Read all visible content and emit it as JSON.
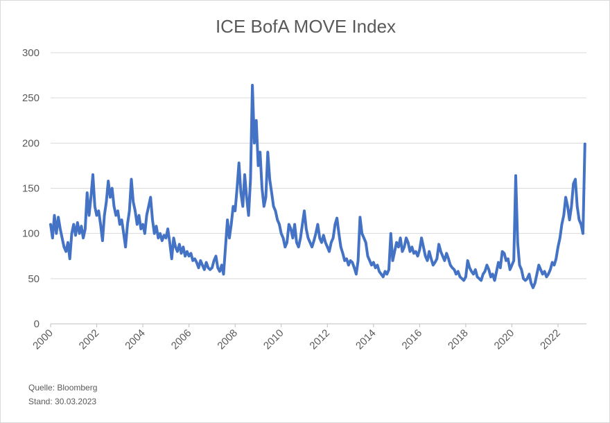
{
  "chart_data": {
    "type": "line",
    "title": "ICE BofA MOVE Index",
    "xlabel": "",
    "ylabel": "",
    "ylim": [
      0,
      300
    ],
    "yticks": [
      "0",
      "50",
      "100",
      "150",
      "200",
      "250",
      "300"
    ],
    "xlim": [
      "2000-01",
      "2023-03"
    ],
    "xticks": [
      "2000",
      "2002",
      "2004",
      "2006",
      "2008",
      "2010",
      "2012",
      "2014",
      "2016",
      "2018",
      "2020",
      "2022"
    ],
    "grid": "horizontal",
    "line_color": "#4472C4",
    "series": [
      {
        "points": [
          [
            "2000-01",
            110
          ],
          [
            "2000-02",
            95
          ],
          [
            "2000-03",
            120
          ],
          [
            "2000-04",
            100
          ],
          [
            "2000-05",
            118
          ],
          [
            "2000-06",
            105
          ],
          [
            "2000-07",
            95
          ],
          [
            "2000-08",
            85
          ],
          [
            "2000-09",
            80
          ],
          [
            "2000-10",
            90
          ],
          [
            "2000-11",
            72
          ],
          [
            "2000-12",
            100
          ],
          [
            "2001-01",
            110
          ],
          [
            "2001-02",
            98
          ],
          [
            "2001-03",
            112
          ],
          [
            "2001-04",
            100
          ],
          [
            "2001-05",
            108
          ],
          [
            "2001-06",
            95
          ],
          [
            "2001-07",
            105
          ],
          [
            "2001-08",
            145
          ],
          [
            "2001-09",
            120
          ],
          [
            "2001-10",
            140
          ],
          [
            "2001-11",
            165
          ],
          [
            "2001-12",
            130
          ],
          [
            "2002-01",
            120
          ],
          [
            "2002-02",
            125
          ],
          [
            "2002-03",
            110
          ],
          [
            "2002-04",
            92
          ],
          [
            "2002-05",
            120
          ],
          [
            "2002-06",
            135
          ],
          [
            "2002-07",
            158
          ],
          [
            "2002-08",
            140
          ],
          [
            "2002-09",
            150
          ],
          [
            "2002-10",
            130
          ],
          [
            "2002-11",
            120
          ],
          [
            "2002-12",
            125
          ],
          [
            "2003-01",
            110
          ],
          [
            "2003-02",
            115
          ],
          [
            "2003-03",
            100
          ],
          [
            "2003-04",
            85
          ],
          [
            "2003-05",
            110
          ],
          [
            "2003-06",
            125
          ],
          [
            "2003-07",
            160
          ],
          [
            "2003-08",
            135
          ],
          [
            "2003-09",
            125
          ],
          [
            "2003-10",
            110
          ],
          [
            "2003-11",
            120
          ],
          [
            "2003-12",
            105
          ],
          [
            "2004-01",
            110
          ],
          [
            "2004-02",
            100
          ],
          [
            "2004-03",
            120
          ],
          [
            "2004-04",
            130
          ],
          [
            "2004-05",
            140
          ],
          [
            "2004-06",
            115
          ],
          [
            "2004-07",
            100
          ],
          [
            "2004-08",
            108
          ],
          [
            "2004-09",
            95
          ],
          [
            "2004-10",
            100
          ],
          [
            "2004-11",
            92
          ],
          [
            "2004-12",
            98
          ],
          [
            "2005-01",
            95
          ],
          [
            "2005-02",
            105
          ],
          [
            "2005-03",
            90
          ],
          [
            "2005-04",
            72
          ],
          [
            "2005-05",
            95
          ],
          [
            "2005-06",
            85
          ],
          [
            "2005-07",
            80
          ],
          [
            "2005-08",
            88
          ],
          [
            "2005-09",
            78
          ],
          [
            "2005-10",
            85
          ],
          [
            "2005-11",
            75
          ],
          [
            "2005-12",
            80
          ],
          [
            "2006-01",
            75
          ],
          [
            "2006-02",
            78
          ],
          [
            "2006-03",
            70
          ],
          [
            "2006-04",
            72
          ],
          [
            "2006-05",
            68
          ],
          [
            "2006-06",
            62
          ],
          [
            "2006-07",
            70
          ],
          [
            "2006-08",
            65
          ],
          [
            "2006-09",
            60
          ],
          [
            "2006-10",
            68
          ],
          [
            "2006-11",
            62
          ],
          [
            "2006-12",
            60
          ],
          [
            "2007-01",
            62
          ],
          [
            "2007-02",
            70
          ],
          [
            "2007-03",
            75
          ],
          [
            "2007-04",
            62
          ],
          [
            "2007-05",
            58
          ],
          [
            "2007-06",
            65
          ],
          [
            "2007-07",
            55
          ],
          [
            "2007-08",
            85
          ],
          [
            "2007-09",
            115
          ],
          [
            "2007-10",
            95
          ],
          [
            "2007-11",
            110
          ],
          [
            "2007-12",
            130
          ],
          [
            "2008-01",
            125
          ],
          [
            "2008-02",
            150
          ],
          [
            "2008-03",
            178
          ],
          [
            "2008-04",
            145
          ],
          [
            "2008-05",
            130
          ],
          [
            "2008-06",
            165
          ],
          [
            "2008-07",
            140
          ],
          [
            "2008-08",
            120
          ],
          [
            "2008-09",
            160
          ],
          [
            "2008-10",
            264
          ],
          [
            "2008-11",
            200
          ],
          [
            "2008-12",
            225
          ],
          [
            "2009-01",
            175
          ],
          [
            "2009-02",
            190
          ],
          [
            "2009-03",
            150
          ],
          [
            "2009-04",
            130
          ],
          [
            "2009-05",
            140
          ],
          [
            "2009-06",
            190
          ],
          [
            "2009-07",
            160
          ],
          [
            "2009-08",
            145
          ],
          [
            "2009-09",
            130
          ],
          [
            "2009-10",
            125
          ],
          [
            "2009-11",
            115
          ],
          [
            "2009-12",
            110
          ],
          [
            "2010-01",
            100
          ],
          [
            "2010-02",
            95
          ],
          [
            "2010-03",
            85
          ],
          [
            "2010-04",
            90
          ],
          [
            "2010-05",
            110
          ],
          [
            "2010-06",
            105
          ],
          [
            "2010-07",
            95
          ],
          [
            "2010-08",
            110
          ],
          [
            "2010-09",
            90
          ],
          [
            "2010-10",
            85
          ],
          [
            "2010-11",
            95
          ],
          [
            "2010-12",
            110
          ],
          [
            "2011-01",
            125
          ],
          [
            "2011-02",
            105
          ],
          [
            "2011-03",
            95
          ],
          [
            "2011-04",
            90
          ],
          [
            "2011-05",
            85
          ],
          [
            "2011-06",
            92
          ],
          [
            "2011-07",
            100
          ],
          [
            "2011-08",
            110
          ],
          [
            "2011-09",
            95
          ],
          [
            "2011-10",
            90
          ],
          [
            "2011-11",
            98
          ],
          [
            "2011-12",
            90
          ],
          [
            "2012-01",
            85
          ],
          [
            "2012-02",
            80
          ],
          [
            "2012-03",
            90
          ],
          [
            "2012-04",
            95
          ],
          [
            "2012-05",
            110
          ],
          [
            "2012-06",
            117
          ],
          [
            "2012-07",
            100
          ],
          [
            "2012-08",
            85
          ],
          [
            "2012-09",
            78
          ],
          [
            "2012-10",
            70
          ],
          [
            "2012-11",
            72
          ],
          [
            "2012-12",
            65
          ],
          [
            "2013-01",
            70
          ],
          [
            "2013-02",
            68
          ],
          [
            "2013-03",
            62
          ],
          [
            "2013-04",
            55
          ],
          [
            "2013-05",
            70
          ],
          [
            "2013-06",
            118
          ],
          [
            "2013-07",
            100
          ],
          [
            "2013-08",
            95
          ],
          [
            "2013-09",
            90
          ],
          [
            "2013-10",
            75
          ],
          [
            "2013-11",
            70
          ],
          [
            "2013-12",
            65
          ],
          [
            "2014-01",
            68
          ],
          [
            "2014-02",
            62
          ],
          [
            "2014-03",
            65
          ],
          [
            "2014-04",
            58
          ],
          [
            "2014-05",
            55
          ],
          [
            "2014-06",
            52
          ],
          [
            "2014-07",
            58
          ],
          [
            "2014-08",
            55
          ],
          [
            "2014-09",
            60
          ],
          [
            "2014-10",
            100
          ],
          [
            "2014-11",
            70
          ],
          [
            "2014-12",
            80
          ],
          [
            "2015-01",
            90
          ],
          [
            "2015-02",
            85
          ],
          [
            "2015-03",
            95
          ],
          [
            "2015-04",
            80
          ],
          [
            "2015-05",
            85
          ],
          [
            "2015-06",
            95
          ],
          [
            "2015-07",
            90
          ],
          [
            "2015-08",
            80
          ],
          [
            "2015-09",
            85
          ],
          [
            "2015-10",
            78
          ],
          [
            "2015-11",
            80
          ],
          [
            "2015-12",
            75
          ],
          [
            "2016-01",
            82
          ],
          [
            "2016-02",
            95
          ],
          [
            "2016-03",
            85
          ],
          [
            "2016-04",
            75
          ],
          [
            "2016-05",
            70
          ],
          [
            "2016-06",
            80
          ],
          [
            "2016-07",
            72
          ],
          [
            "2016-08",
            65
          ],
          [
            "2016-09",
            68
          ],
          [
            "2016-10",
            72
          ],
          [
            "2016-11",
            88
          ],
          [
            "2016-12",
            80
          ],
          [
            "2017-01",
            75
          ],
          [
            "2017-02",
            70
          ],
          [
            "2017-03",
            78
          ],
          [
            "2017-04",
            72
          ],
          [
            "2017-05",
            65
          ],
          [
            "2017-06",
            62
          ],
          [
            "2017-07",
            60
          ],
          [
            "2017-08",
            55
          ],
          [
            "2017-09",
            58
          ],
          [
            "2017-10",
            52
          ],
          [
            "2017-11",
            50
          ],
          [
            "2017-12",
            48
          ],
          [
            "2018-01",
            52
          ],
          [
            "2018-02",
            70
          ],
          [
            "2018-03",
            62
          ],
          [
            "2018-04",
            58
          ],
          [
            "2018-05",
            55
          ],
          [
            "2018-06",
            60
          ],
          [
            "2018-07",
            52
          ],
          [
            "2018-08",
            50
          ],
          [
            "2018-09",
            48
          ],
          [
            "2018-10",
            55
          ],
          [
            "2018-11",
            58
          ],
          [
            "2018-12",
            65
          ],
          [
            "2019-01",
            60
          ],
          [
            "2019-02",
            52
          ],
          [
            "2019-03",
            55
          ],
          [
            "2019-04",
            48
          ],
          [
            "2019-05",
            58
          ],
          [
            "2019-06",
            68
          ],
          [
            "2019-07",
            62
          ],
          [
            "2019-08",
            80
          ],
          [
            "2019-09",
            78
          ],
          [
            "2019-10",
            70
          ],
          [
            "2019-11",
            72
          ],
          [
            "2019-12",
            60
          ],
          [
            "2020-01",
            65
          ],
          [
            "2020-02",
            70
          ],
          [
            "2020-03",
            164
          ],
          [
            "2020-04",
            90
          ],
          [
            "2020-05",
            65
          ],
          [
            "2020-06",
            60
          ],
          [
            "2020-07",
            50
          ],
          [
            "2020-08",
            48
          ],
          [
            "2020-09",
            50
          ],
          [
            "2020-10",
            55
          ],
          [
            "2020-11",
            45
          ],
          [
            "2020-12",
            40
          ],
          [
            "2021-01",
            45
          ],
          [
            "2021-02",
            55
          ],
          [
            "2021-03",
            65
          ],
          [
            "2021-04",
            60
          ],
          [
            "2021-05",
            55
          ],
          [
            "2021-06",
            58
          ],
          [
            "2021-07",
            52
          ],
          [
            "2021-08",
            55
          ],
          [
            "2021-09",
            60
          ],
          [
            "2021-10",
            68
          ],
          [
            "2021-11",
            65
          ],
          [
            "2021-12",
            72
          ],
          [
            "2022-01",
            85
          ],
          [
            "2022-02",
            95
          ],
          [
            "2022-03",
            110
          ],
          [
            "2022-04",
            120
          ],
          [
            "2022-05",
            140
          ],
          [
            "2022-06",
            130
          ],
          [
            "2022-07",
            115
          ],
          [
            "2022-08",
            130
          ],
          [
            "2022-09",
            155
          ],
          [
            "2022-10",
            160
          ],
          [
            "2022-11",
            130
          ],
          [
            "2022-12",
            115
          ],
          [
            "2023-01",
            110
          ],
          [
            "2023-02",
            100
          ],
          [
            "2023-03",
            199
          ]
        ]
      }
    ]
  },
  "footer": {
    "source": "Quelle: Bloomberg",
    "date": "Stand: 30.03.2023"
  }
}
